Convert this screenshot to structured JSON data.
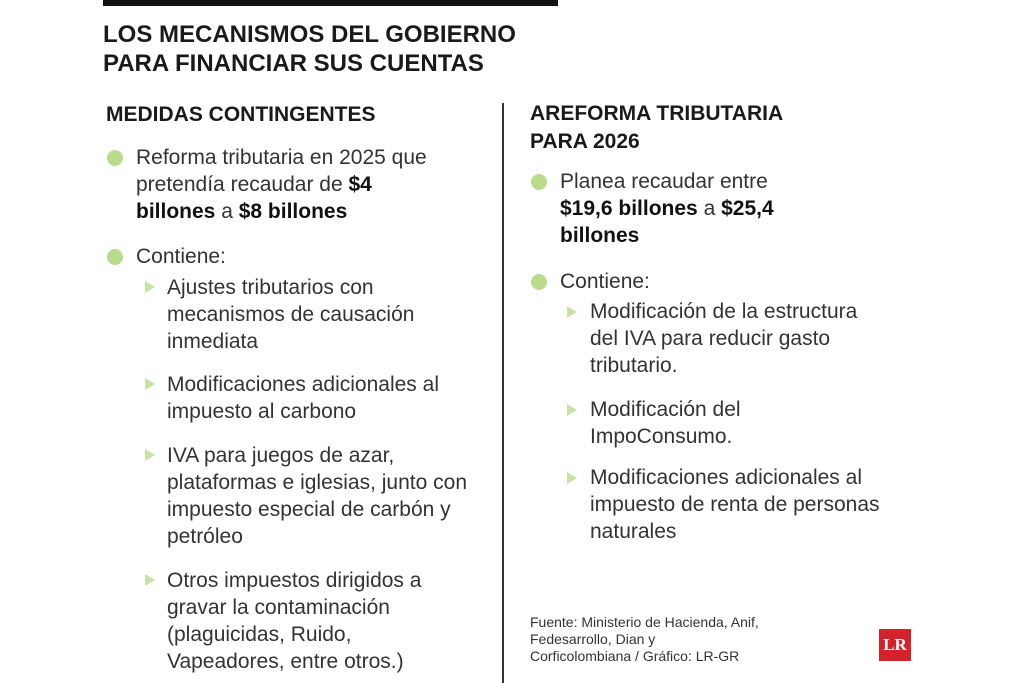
{
  "header": {
    "title": "LOS MECANISMOS DEL GOBIERNO PARA FINANCIAR SUS CUENTAS"
  },
  "columns": [
    {
      "heading": "MEDIDAS CONTINGENTES",
      "items": [
        {
          "parts": [
            "Reforma tributaria en 2025 que pretendía recaudar de ",
            "$4 billones",
            " a ",
            "$8 billones"
          ]
        },
        {
          "text": "Contiene:",
          "subitems": [
            "Ajustes tributarios con mecanismos de causación inmediata",
            "Modificaciones adicionales al impuesto al carbono",
            "IVA para juegos de azar, plataformas e iglesias, junto con impuesto especial de carbón y petróleo",
            "Otros impuestos dirigidos a gravar la contaminación (plaguicidas, Ruido, Vapeadores, entre otros.)"
          ]
        }
      ]
    },
    {
      "heading": "AREFORMA TRIBUTARIA PARA 2026",
      "items": [
        {
          "parts": [
            "Planea recaudar entre ",
            "$19,6 billones",
            " a ",
            "$25,4 billones"
          ]
        },
        {
          "text": "Contiene:",
          "subitems": [
            "Modificación de la estructura del IVA para reducir gasto tributario.",
            "Modificación del ImpoConsumo.",
            "Modificaciones adicionales al impuesto de renta de personas naturales"
          ]
        }
      ]
    }
  ],
  "footer": {
    "source": "Fuente: Ministerio de Hacienda, Anif, Fedesarrollo, Dian y Corficolombiana / Gráfico: LR-GR",
    "logo": "LR"
  }
}
